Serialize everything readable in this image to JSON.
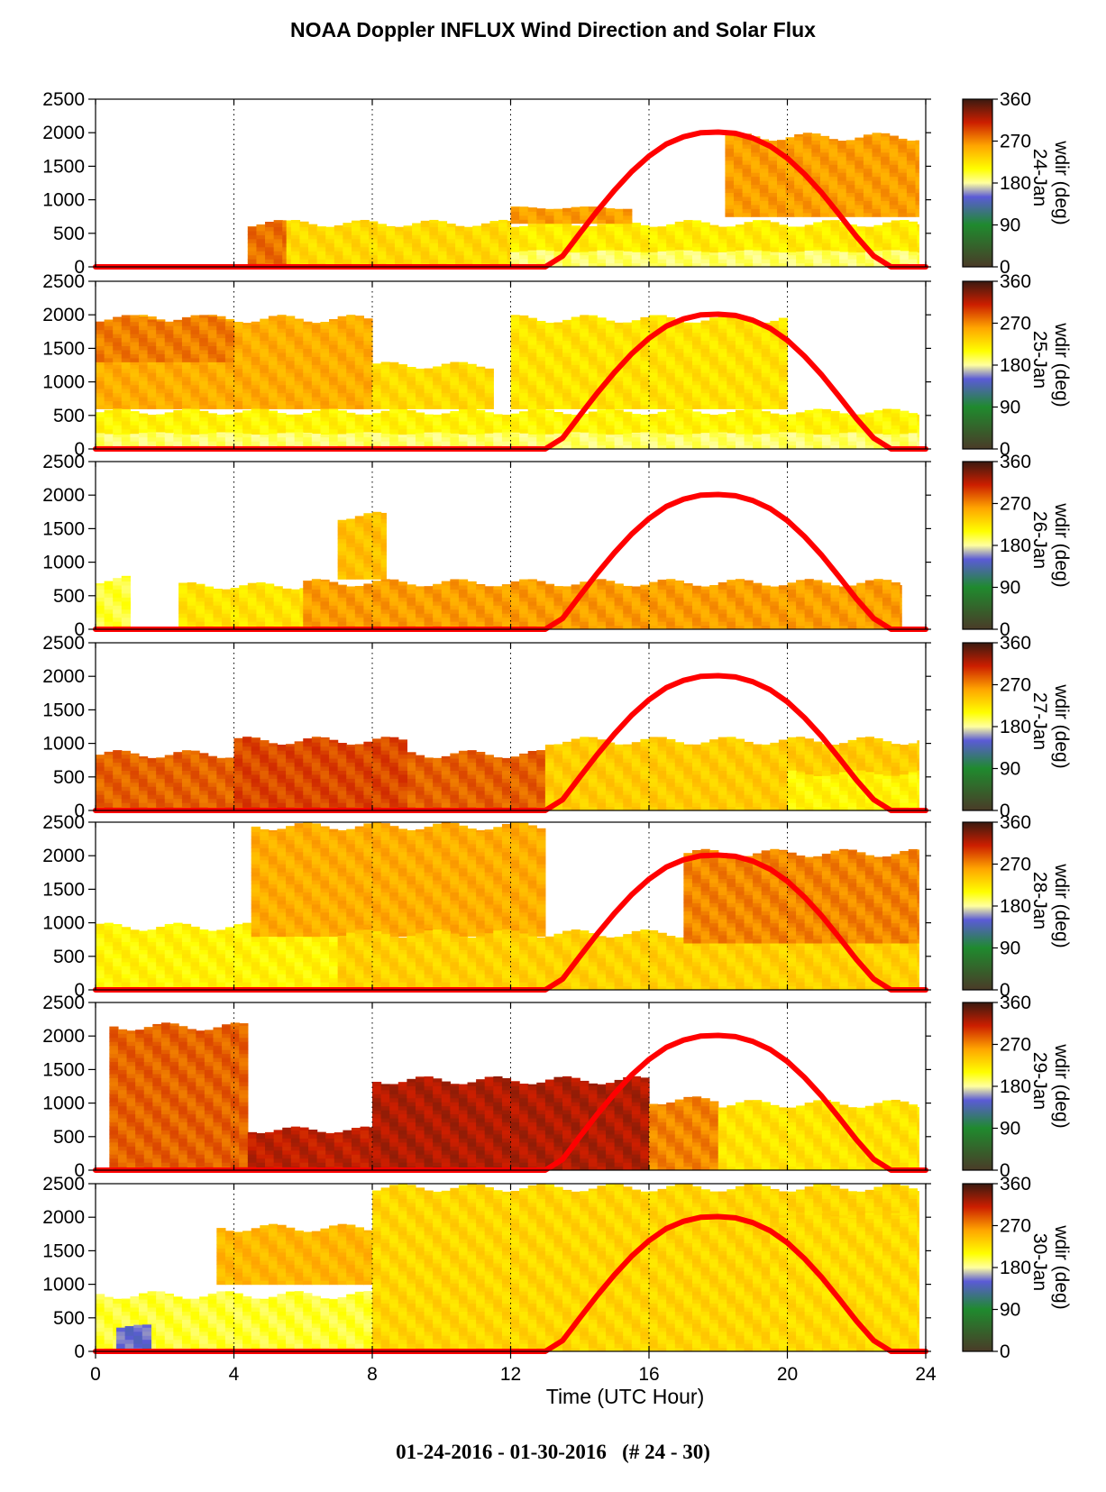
{
  "title": "NOAA Doppler INFLUX Wind Direction and Solar Flux",
  "footer": "01-24-2016 - 01-30-2016   (# 24 - 30)",
  "xlabel": "Time (UTC Hour)",
  "colorbar": {
    "label": "wdir (deg)",
    "ticks": [
      "0",
      "90",
      "180",
      "270",
      "360"
    ],
    "stops": [
      "#4a3b28",
      "#1f8a2e",
      "#5b5bd6",
      "#ffffa0",
      "#ffff00",
      "#ffa500",
      "#cc1e00",
      "#3a1a10"
    ]
  },
  "chart_data": {
    "type": "heatmap",
    "title": "NOAA Doppler INFLUX Wind Direction and Solar Flux",
    "xlabel": "Time (UTC Hour)",
    "ylabel": "",
    "xlim": [
      0,
      24
    ],
    "ylim": [
      0,
      2500
    ],
    "x_ticks": [
      0,
      4,
      8,
      12,
      16,
      20,
      24
    ],
    "y_ticks": [
      0,
      500,
      1000,
      1500,
      2000,
      2500
    ],
    "color_variable": "wdir (deg)",
    "color_range": [
      0,
      360
    ],
    "dotted_vertical_gridlines_at": [
      4,
      8,
      12,
      16,
      20
    ],
    "solar_flux_curve": {
      "color": "#ff0000",
      "x": [
        0,
        13,
        13.5,
        14,
        14.5,
        15,
        15.5,
        16,
        16.5,
        17,
        17.5,
        18,
        18.5,
        19,
        19.5,
        20,
        20.5,
        21,
        21.5,
        22,
        22.5,
        23,
        24
      ],
      "y": [
        0,
        0,
        160,
        500,
        830,
        1140,
        1420,
        1650,
        1830,
        1940,
        2000,
        2010,
        1990,
        1920,
        1800,
        1620,
        1380,
        1100,
        780,
        450,
        160,
        0,
        0
      ]
    },
    "panels": [
      {
        "date": "24-Jan",
        "regions": [
          {
            "x": [
              4.4,
              12.0
            ],
            "y": [
              0,
              700
            ],
            "wdir_deg": 230
          },
          {
            "x": [
              4.4,
              5.5
            ],
            "y": [
              0,
              700
            ],
            "wdir_deg": 280
          },
          {
            "x": [
              12.0,
              23.8
            ],
            "y": [
              0,
              700
            ],
            "wdir_deg": 220
          },
          {
            "x": [
              12.0,
              23.8
            ],
            "y": [
              0,
              250
            ],
            "wdir_deg": 190
          },
          {
            "x": [
              18.2,
              23.8
            ],
            "y": [
              750,
              2000
            ],
            "wdir_deg": 262
          },
          {
            "x": [
              12.0,
              15.5
            ],
            "y": [
              650,
              900
            ],
            "wdir_deg": 262
          }
        ]
      },
      {
        "date": "25-Jan",
        "regions": [
          {
            "x": [
              0.0,
              8.0
            ],
            "y": [
              600,
              2000
            ],
            "wdir_deg": 255
          },
          {
            "x": [
              0.0,
              4.0
            ],
            "y": [
              1300,
              2000
            ],
            "wdir_deg": 275
          },
          {
            "x": [
              0.0,
              23.8
            ],
            "y": [
              0,
              600
            ],
            "wdir_deg": 215
          },
          {
            "x": [
              8.0,
              11.5
            ],
            "y": [
              600,
              1300
            ],
            "wdir_deg": 230
          },
          {
            "x": [
              12.0,
              20.0
            ],
            "y": [
              600,
              2000
            ],
            "wdir_deg": 225
          },
          {
            "x": [
              0.0,
              23.8
            ],
            "y": [
              0,
              250
            ],
            "wdir_deg": 190
          }
        ]
      },
      {
        "date": "26-Jan",
        "regions": [
          {
            "x": [
              0.0,
              1.0
            ],
            "y": [
              0,
              800
            ],
            "wdir_deg": 200
          },
          {
            "x": [
              2.4,
              6.0
            ],
            "y": [
              0,
              700
            ],
            "wdir_deg": 225
          },
          {
            "x": [
              6.0,
              23.3
            ],
            "y": [
              0,
              750
            ],
            "wdir_deg": 262
          },
          {
            "x": [
              7.0,
              8.4
            ],
            "y": [
              750,
              1750
            ],
            "wdir_deg": 245
          }
        ]
      },
      {
        "date": "27-Jan",
        "regions": [
          {
            "x": [
              0.0,
              13.0
            ],
            "y": [
              0,
              900
            ],
            "wdir_deg": 285
          },
          {
            "x": [
              4.0,
              9.0
            ],
            "y": [
              0,
              1100
            ],
            "wdir_deg": 295
          },
          {
            "x": [
              13.0,
              23.8
            ],
            "y": [
              0,
              1100
            ],
            "wdir_deg": 238
          },
          {
            "x": [
              20.0,
              23.8
            ],
            "y": [
              0,
              600
            ],
            "wdir_deg": 215
          }
        ]
      },
      {
        "date": "28-Jan",
        "regions": [
          {
            "x": [
              0.0,
              7.0
            ],
            "y": [
              0,
              1000
            ],
            "wdir_deg": 215
          },
          {
            "x": [
              4.5,
              13.0
            ],
            "y": [
              800,
              2500
            ],
            "wdir_deg": 255
          },
          {
            "x": [
              7.0,
              23.8
            ],
            "y": [
              0,
              900
            ],
            "wdir_deg": 235
          },
          {
            "x": [
              17.0,
              23.8
            ],
            "y": [
              700,
              2100
            ],
            "wdir_deg": 272
          }
        ]
      },
      {
        "date": "29-Jan",
        "regions": [
          {
            "x": [
              0.4,
              4.4
            ],
            "y": [
              0,
              2200
            ],
            "wdir_deg": 285
          },
          {
            "x": [
              4.4,
              8.0
            ],
            "y": [
              0,
              650
            ],
            "wdir_deg": 315
          },
          {
            "x": [
              8.0,
              16.0
            ],
            "y": [
              0,
              1400
            ],
            "wdir_deg": 320
          },
          {
            "x": [
              16.0,
              18.0
            ],
            "y": [
              0,
              1100
            ],
            "wdir_deg": 272
          },
          {
            "x": [
              18.0,
              23.8
            ],
            "y": [
              0,
              1050
            ],
            "wdir_deg": 225
          }
        ]
      },
      {
        "date": "30-Jan",
        "regions": [
          {
            "x": [
              0.0,
              8.0
            ],
            "y": [
              0,
              900
            ],
            "wdir_deg": 200
          },
          {
            "x": [
              0.6,
              1.6
            ],
            "y": [
              0,
              400
            ],
            "wdir_deg": 150
          },
          {
            "x": [
              3.5,
              8.0
            ],
            "y": [
              1000,
              1900
            ],
            "wdir_deg": 250
          },
          {
            "x": [
              8.0,
              23.8
            ],
            "y": [
              0,
              2500
            ],
            "wdir_deg": 232
          },
          {
            "x": [
              19.5,
              23.8
            ],
            "y": [
              0,
              2100
            ],
            "wdir_deg": 230
          }
        ]
      }
    ]
  }
}
